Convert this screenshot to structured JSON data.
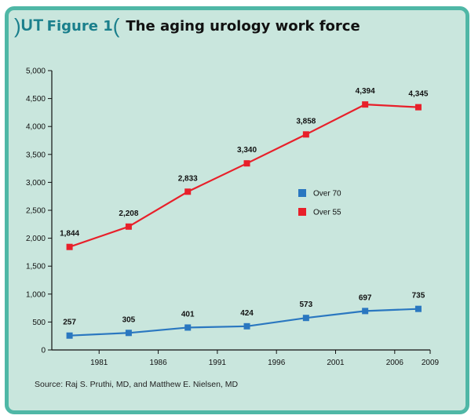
{
  "header": {
    "badge_ut": "UT",
    "badge_figure": "Figure 1",
    "title": "The aging urology work force"
  },
  "source": "Source: Raj S. Pruthi, MD, and Matthew E. Nielsen, MD",
  "colors": {
    "frame_border": "#4fb7a6",
    "background": "#c9e6dd",
    "accent": "#1a7f8c",
    "over70": "#2a77c0",
    "over55": "#e8202a"
  },
  "chart_data": {
    "type": "line",
    "title": "The aging urology work force",
    "xlabel": "",
    "ylabel": "",
    "ylim": [
      0,
      5000
    ],
    "xlim": [
      1977,
      2009
    ],
    "yticks": [
      0,
      500,
      1000,
      1500,
      2000,
      2500,
      3000,
      3500,
      4000,
      4500,
      5000
    ],
    "ytick_labels": [
      "0",
      "500",
      "1,000",
      "1,500",
      "2,000",
      "2,500",
      "3,000",
      "3,500",
      "4,000",
      "4,500",
      "5,000"
    ],
    "xticks": [
      1981,
      1986,
      1991,
      1996,
      2001,
      2006,
      2009
    ],
    "xtick_labels": [
      "1981",
      "1986",
      "1991",
      "1996",
      "2001",
      "2006",
      "2009"
    ],
    "x": [
      1978.5,
      1983.5,
      1988.5,
      1993.5,
      1998.5,
      2003.5,
      2008
    ],
    "grid": false,
    "legend_position": "center-right",
    "series": [
      {
        "name": "Over 70",
        "color": "#2a77c0",
        "values": [
          257,
          305,
          401,
          424,
          573,
          697,
          735
        ],
        "labels": [
          "257",
          "305",
          "401",
          "424",
          "573",
          "697",
          "735"
        ]
      },
      {
        "name": "Over 55",
        "color": "#e8202a",
        "values": [
          1844,
          2208,
          2833,
          3340,
          3858,
          4394,
          4345
        ],
        "labels": [
          "1,844",
          "2,208",
          "2,833",
          "3,340",
          "3,858",
          "4,394",
          "4,345"
        ]
      }
    ]
  }
}
